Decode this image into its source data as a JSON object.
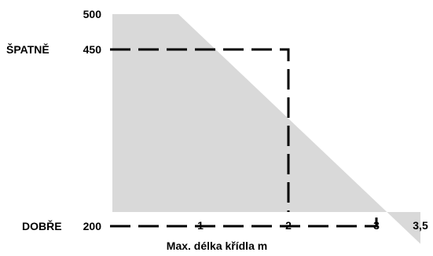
{
  "chart_data": {
    "type": "area",
    "title": "",
    "xlabel": "Max. délka křídla m",
    "ylabel": "",
    "xlim": [
      0,
      3.5
    ],
    "ylim": [
      120,
      500
    ],
    "x_ticks": [
      {
        "value": 1,
        "label": "1"
      },
      {
        "value": 2,
        "label": "2"
      },
      {
        "value": 3,
        "label": "3"
      },
      {
        "value": 3.5,
        "label": "3,5"
      }
    ],
    "y_ticks": [
      {
        "value": 500,
        "label": "500"
      },
      {
        "value": 450,
        "label": "450"
      },
      {
        "value": 200,
        "label": "200"
      }
    ],
    "region": {
      "color": "#d9d9d9",
      "boundary": [
        {
          "x": 0.75,
          "y": 500
        },
        {
          "x": 3.5,
          "y": 175
        }
      ]
    },
    "reference_lines": [
      {
        "label": "ŠPATNĚ",
        "y": 450,
        "x_end": 2
      },
      {
        "label": "DOBŘE",
        "y": 200,
        "x_end": 3
      }
    ],
    "grid": false,
    "legend": "none"
  }
}
